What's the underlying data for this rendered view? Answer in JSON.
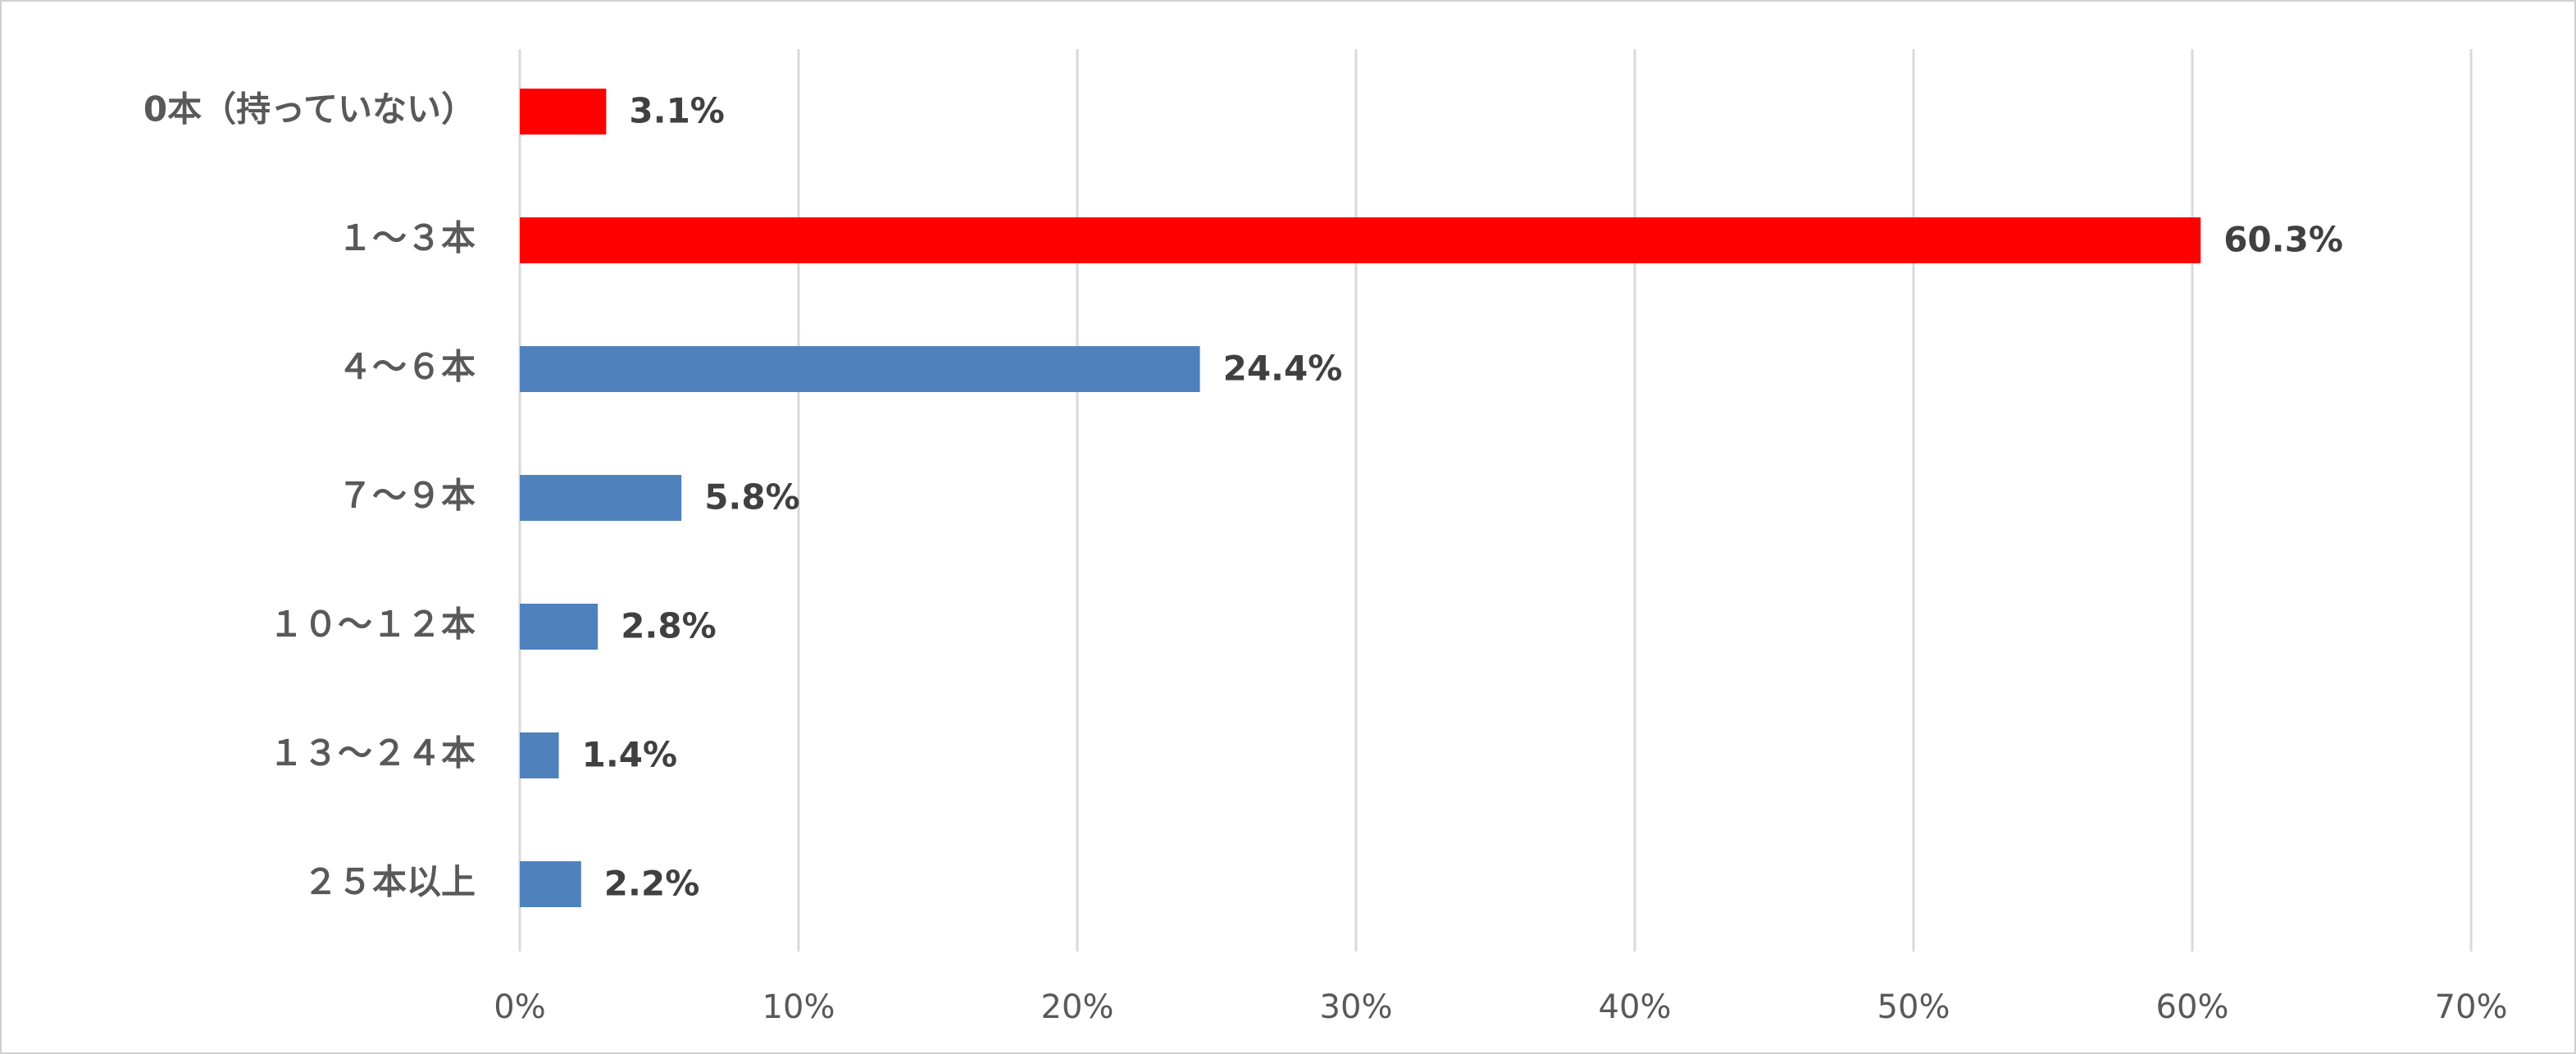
{
  "chart_data": {
    "type": "hbar",
    "categories": [
      "0本（持っていない）",
      "１～３本",
      "４～６本",
      "７～９本",
      "１０～１２本",
      "１３～２４本",
      "２５本以上"
    ],
    "values": [
      3.1,
      60.3,
      24.4,
      5.8,
      2.8,
      1.4,
      2.2
    ],
    "value_labels": [
      "3.1%",
      "60.3%",
      "24.4%",
      "5.8%",
      "2.8%",
      "1.4%",
      "2.2%"
    ],
    "colors": [
      "#ff0000",
      "#ff0000",
      "#4f81bd",
      "#4f81bd",
      "#4f81bd",
      "#4f81bd",
      "#4f81bd"
    ],
    "xlim": [
      0,
      70
    ],
    "xticks": [
      {
        "value": 0,
        "label": "0%"
      },
      {
        "value": 10,
        "label": "10%"
      },
      {
        "value": 20,
        "label": "20%"
      },
      {
        "value": 30,
        "label": "30%"
      },
      {
        "value": 40,
        "label": "40%"
      },
      {
        "value": 50,
        "label": "50%"
      },
      {
        "value": 60,
        "label": "60%"
      },
      {
        "value": 70,
        "label": "70%"
      }
    ],
    "grid": true
  }
}
